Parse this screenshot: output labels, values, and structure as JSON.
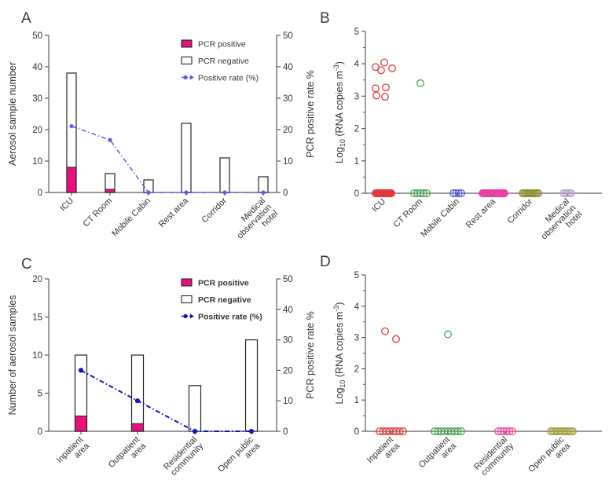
{
  "figure": {
    "background": "#ffffff",
    "axis_color": "#5a5a5a",
    "text_color": "#333333",
    "bar_outline_color": "#262626"
  },
  "panel_labels": [
    "A",
    "B",
    "C",
    "D"
  ],
  "chart_data": [
    {
      "panel_label": "A",
      "type": "bar",
      "categories": [
        "ICU",
        "CT Room",
        "Mobile Cabin",
        "Rest area",
        "Corridor",
        "Medical observation hotel"
      ],
      "category_lines": [
        [
          "ICU"
        ],
        [
          "CT Room"
        ],
        [
          "Mobile Cabin"
        ],
        [
          "Rest area"
        ],
        [
          "Corridor"
        ],
        [
          "Medical",
          "observation",
          "hotel"
        ]
      ],
      "ylabel": "Aerosol sample number",
      "ylim": [
        0,
        50
      ],
      "yticks": [
        0,
        10,
        20,
        30,
        40,
        50
      ],
      "y2label": "PCR positive rate %",
      "y2lim": [
        0,
        50
      ],
      "y2ticks": [
        0,
        10,
        20,
        30,
        40,
        50
      ],
      "grid": false,
      "legend_position": "top-right",
      "legend_bold": false,
      "series": [
        {
          "name": "PCR positive",
          "type": "bar",
          "color": "#EB0E7E",
          "values": [
            8,
            1,
            0,
            0,
            0,
            0
          ]
        },
        {
          "name": "PCR negative",
          "type": "bar",
          "color": "#FFFFFF",
          "values": [
            30,
            5,
            4,
            22,
            11,
            5
          ]
        },
        {
          "name": "Positive rate (%)",
          "type": "line",
          "axis": "right",
          "color": "#5A5AF2",
          "values": [
            21.1,
            16.7,
            0,
            0,
            0,
            0
          ]
        }
      ]
    },
    {
      "panel_label": "B",
      "type": "scatter",
      "categories": [
        "ICU",
        "CT Room",
        "Mobile Cabin",
        "Rest area",
        "Corridor",
        "Medical observation hotel"
      ],
      "category_lines": [
        [
          "ICU"
        ],
        [
          "CT Room"
        ],
        [
          "Mobile Cabin"
        ],
        [
          "Rest area"
        ],
        [
          "Corridor"
        ],
        [
          "Medical",
          "observation",
          "hotel"
        ]
      ],
      "ylabel": "Log10 (RNA copies m-3)",
      "ylabel_parts": [
        {
          "t": "Log"
        },
        {
          "t": "10",
          "s": "sub"
        },
        {
          "t": " (RNA copies m"
        },
        {
          "t": "-3",
          "s": "sup"
        },
        {
          "t": ")"
        }
      ],
      "ylim": [
        0,
        5
      ],
      "yticks": [
        0,
        1,
        2,
        3,
        4,
        5
      ],
      "yminor_step": 0.5,
      "grid": false,
      "groups": [
        {
          "name": "ICU",
          "color": "#E23B3B",
          "positives": [
            3.9,
            4.04,
            3.8,
            3.86,
            3.24,
            3.27,
            3.02,
            2.98
          ],
          "positive_dx": [
            -10,
            1,
            -3,
            11,
            -10,
            3,
            -9,
            2
          ],
          "zeros": 30,
          "zero_halfwidth": 10
        },
        {
          "name": "CT Room",
          "color": "#48A656",
          "positives": [
            3.4
          ],
          "positive_dx": [
            0
          ],
          "zeros": 5,
          "zero_halfwidth": 8
        },
        {
          "name": "Mobile Cabin",
          "color": "#5A5ADB",
          "positives": [],
          "positive_dx": [],
          "zeros": 4,
          "zero_halfwidth": 5
        },
        {
          "name": "Rest area",
          "color": "#EA3DA4",
          "positives": [],
          "positive_dx": [],
          "zeros": 22,
          "zero_halfwidth": 14
        },
        {
          "name": "Corridor",
          "color": "#8E8E2E",
          "positives": [],
          "positive_dx": [],
          "zeros": 11,
          "zero_halfwidth": 10
        },
        {
          "name": "Medical observation hotel",
          "color": "#B5A3CF",
          "positives": [],
          "positive_dx": [],
          "zeros": 5,
          "zero_halfwidth": 5
        }
      ]
    },
    {
      "panel_label": "C",
      "type": "bar",
      "categories": [
        "Inpatient area",
        "Outpatient area",
        "Residential community",
        "Open public area"
      ],
      "category_lines": [
        [
          "Inpatient",
          "area"
        ],
        [
          "Outpatient",
          "area"
        ],
        [
          "Residential",
          "community"
        ],
        [
          "Open public",
          "area"
        ]
      ],
      "ylabel": "Number of aerosol samples",
      "ylim": [
        0,
        20
      ],
      "yticks": [
        0,
        5,
        10,
        15,
        20
      ],
      "y2label": "PCR positive rate %",
      "y2lim": [
        0,
        50
      ],
      "y2ticks": [
        0,
        10,
        20,
        30,
        40,
        50
      ],
      "grid": false,
      "legend_position": "top-right",
      "legend_bold": true,
      "series": [
        {
          "name": "PCR positive",
          "type": "bar",
          "color": "#EB0E7E",
          "values": [
            2,
            1,
            0,
            0
          ]
        },
        {
          "name": "PCR negative",
          "type": "bar",
          "color": "#FFFFFF",
          "values": [
            8,
            9,
            6,
            12
          ]
        },
        {
          "name": "Positive rate (%)",
          "type": "line",
          "axis": "right",
          "color": "#1313C9",
          "values": [
            20,
            10,
            0,
            0
          ]
        }
      ]
    },
    {
      "panel_label": "D",
      "type": "scatter",
      "categories": [
        "Inpatient area",
        "Outpatient area",
        "Residential community",
        "Open public area"
      ],
      "category_lines": [
        [
          "Inpatient",
          "area"
        ],
        [
          "Outpatient",
          "area"
        ],
        [
          "Residential",
          "community"
        ],
        [
          "Open public",
          "area"
        ]
      ],
      "ylabel": "Log10 (RNA copies m-3)",
      "ylabel_parts": [
        {
          "t": "Log"
        },
        {
          "t": "10",
          "s": "sub"
        },
        {
          "t": " (RNA copies m"
        },
        {
          "t": "-3",
          "s": "sup"
        },
        {
          "t": ")"
        }
      ],
      "ylim": [
        0,
        5
      ],
      "yticks": [
        0,
        1,
        2,
        3,
        4,
        5
      ],
      "yminor_step": 0.5,
      "grid": false,
      "groups": [
        {
          "name": "Inpatient area",
          "color": "#E23B3B",
          "positives": [
            3.2,
            2.95
          ],
          "positive_dx": [
            -8,
            6
          ],
          "zeros": 8,
          "zero_halfwidth": 15
        },
        {
          "name": "Outpatient area",
          "color": "#48A656",
          "positives": [
            3.1
          ],
          "positive_dx": [
            0
          ],
          "zeros": 9,
          "zero_halfwidth": 17
        },
        {
          "name": "Residential community",
          "color": "#F04FA8",
          "positives": [],
          "positive_dx": [],
          "zeros": 6,
          "zero_halfwidth": 9
        },
        {
          "name": "Open public area",
          "color": "#A2A23E",
          "positives": [],
          "positive_dx": [],
          "zeros": 12,
          "zero_halfwidth": 14
        }
      ]
    }
  ]
}
